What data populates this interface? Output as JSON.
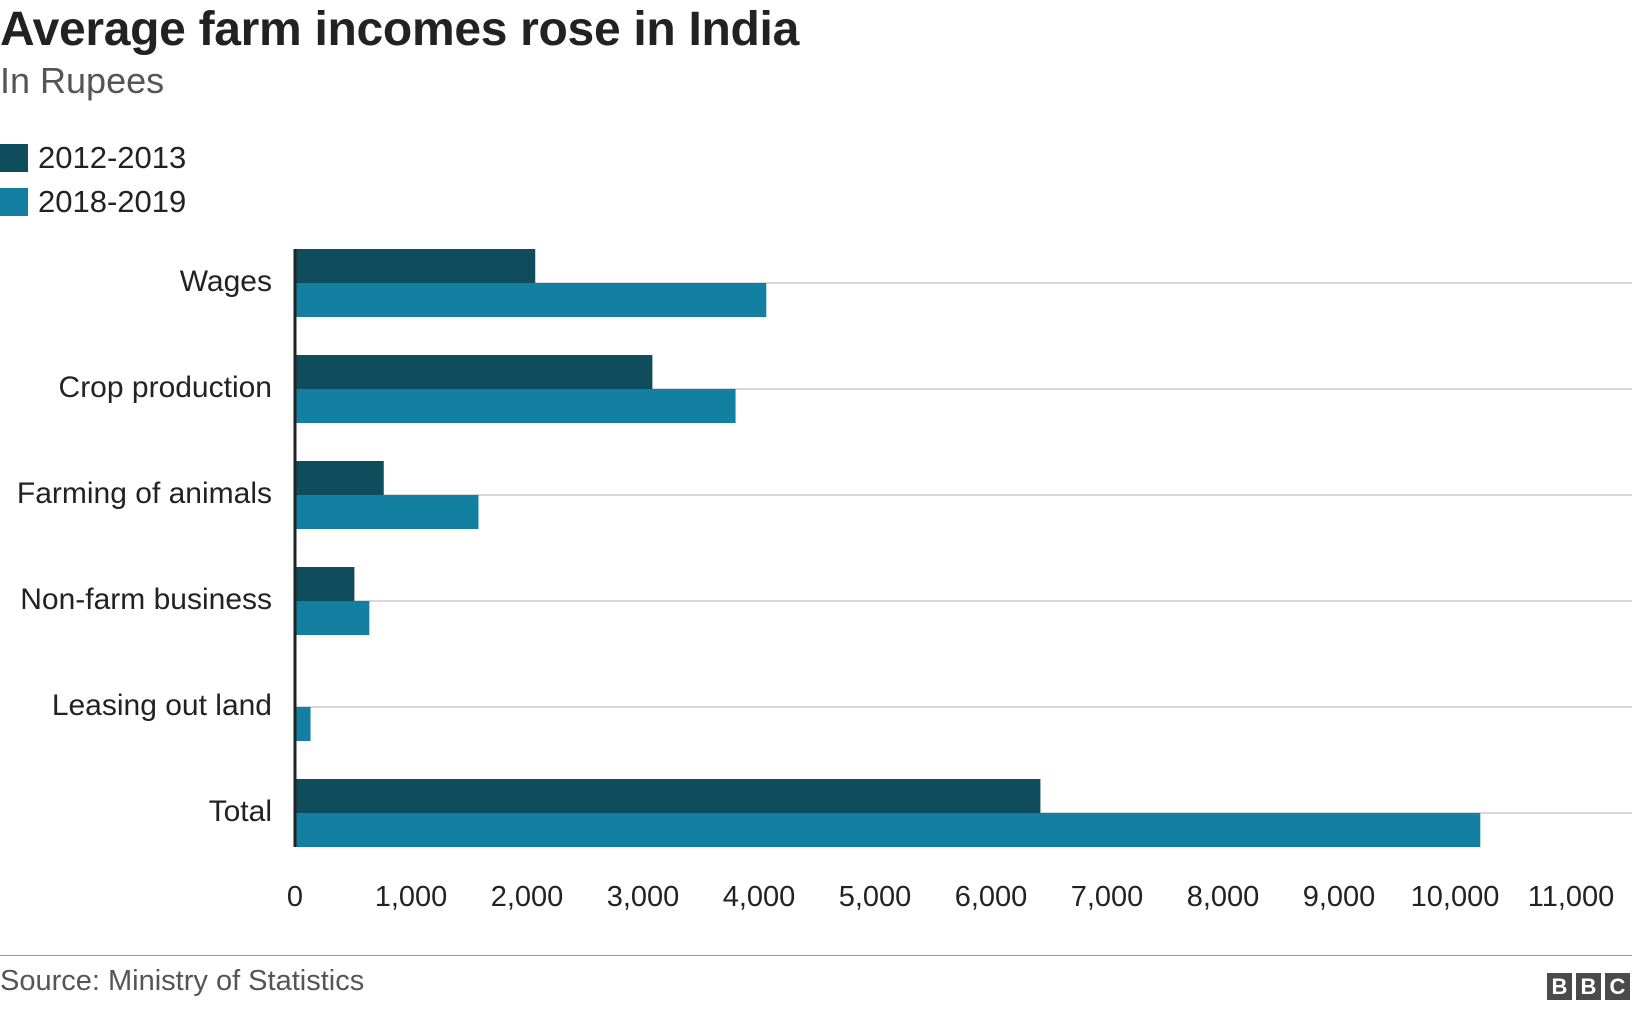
{
  "chart_data": {
    "type": "bar",
    "orientation": "horizontal",
    "title": "Average farm incomes rose in India",
    "subtitle": "In Rupees",
    "categories": [
      "Wages",
      "Crop production",
      "Farming of animals",
      "Non-farm business",
      "Leasing out land",
      "Total"
    ],
    "series": [
      {
        "name": "2012-2013",
        "color": "#0f4c5c",
        "values": [
          2071,
          3081,
          765,
          512,
          0,
          6426
        ]
      },
      {
        "name": "2018-2019",
        "color": "#1380a1",
        "values": [
          4063,
          3798,
          1582,
          641,
          134,
          10218
        ]
      }
    ],
    "xlim": [
      0,
      11000
    ],
    "xticks": [
      0,
      1000,
      2000,
      3000,
      4000,
      5000,
      6000,
      7000,
      8000,
      9000,
      10000,
      11000
    ],
    "xtick_labels": [
      "0",
      "1,000",
      "2,000",
      "3,000",
      "4,000",
      "5,000",
      "6,000",
      "7,000",
      "8,000",
      "9,000",
      "10,000",
      "11,000"
    ],
    "xlabel": "",
    "ylabel": "",
    "grid": true,
    "legend_position": "top-left"
  },
  "footer": {
    "source": "Source: Ministry of Statistics",
    "logo_letters": [
      "B",
      "B",
      "C"
    ]
  },
  "colors": {
    "grid": "#cccccc",
    "axis": "#222222",
    "text": "#222222"
  }
}
